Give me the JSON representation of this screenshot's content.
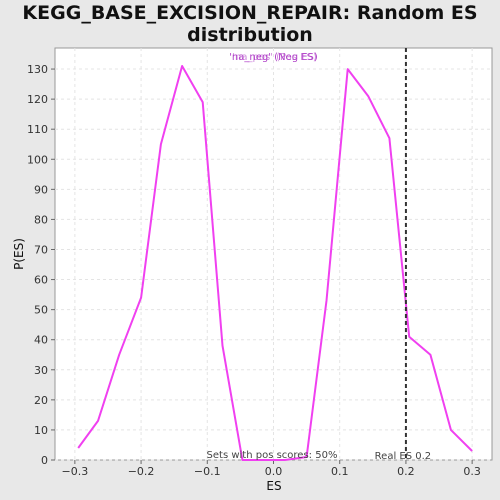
{
  "chart_data": {
    "type": "line",
    "title_line1": "KEGG_BASE_EXCISION_REPAIR: Random ES",
    "title_line2": "distribution",
    "xlabel": "ES",
    "ylabel": "P(ES)",
    "xlim": [
      -0.33,
      0.33
    ],
    "ylim": [
      0,
      137
    ],
    "xticks": [
      -0.3,
      -0.2,
      -0.1,
      0.0,
      0.1,
      0.2,
      0.3
    ],
    "xtick_labels": [
      "−0.3",
      "−0.2",
      "−0.1",
      "0.0",
      "0.1",
      "0.2",
      "0.3"
    ],
    "yticks": [
      0,
      10,
      20,
      30,
      40,
      50,
      60,
      70,
      80,
      90,
      100,
      110,
      120,
      130
    ],
    "ytick_labels": [
      "0",
      "10",
      "20",
      "30",
      "40",
      "50",
      "60",
      "70",
      "80",
      "90",
      "100",
      "110",
      "120",
      "130"
    ],
    "grid": true,
    "legend": {
      "placement": "top-center",
      "entries": [
        {
          "label": "'na_neg' (Neg ES)",
          "color": "#b040c8"
        },
        {
          "label": "'na_pos' (Pos ES)",
          "color": "#b040c8"
        }
      ]
    },
    "series": [
      {
        "color": "#f040f0",
        "x": [
          -0.295,
          -0.265,
          -0.233,
          -0.2,
          -0.17,
          -0.138,
          -0.107,
          -0.077,
          -0.047,
          -0.017,
          0.017,
          0.05,
          0.08,
          0.112,
          0.143,
          0.175,
          0.205,
          0.237,
          0.268,
          0.3
        ],
        "y": [
          4,
          13,
          35,
          54,
          105,
          131,
          119,
          38,
          0,
          0,
          0,
          1,
          53,
          130,
          121,
          107,
          41,
          35,
          10,
          3
        ]
      }
    ],
    "reference_line": {
      "x": 0.2,
      "label": "Real ES 0.2",
      "color": "#333333"
    },
    "annotation": "Sets with pos scores: 50%"
  }
}
